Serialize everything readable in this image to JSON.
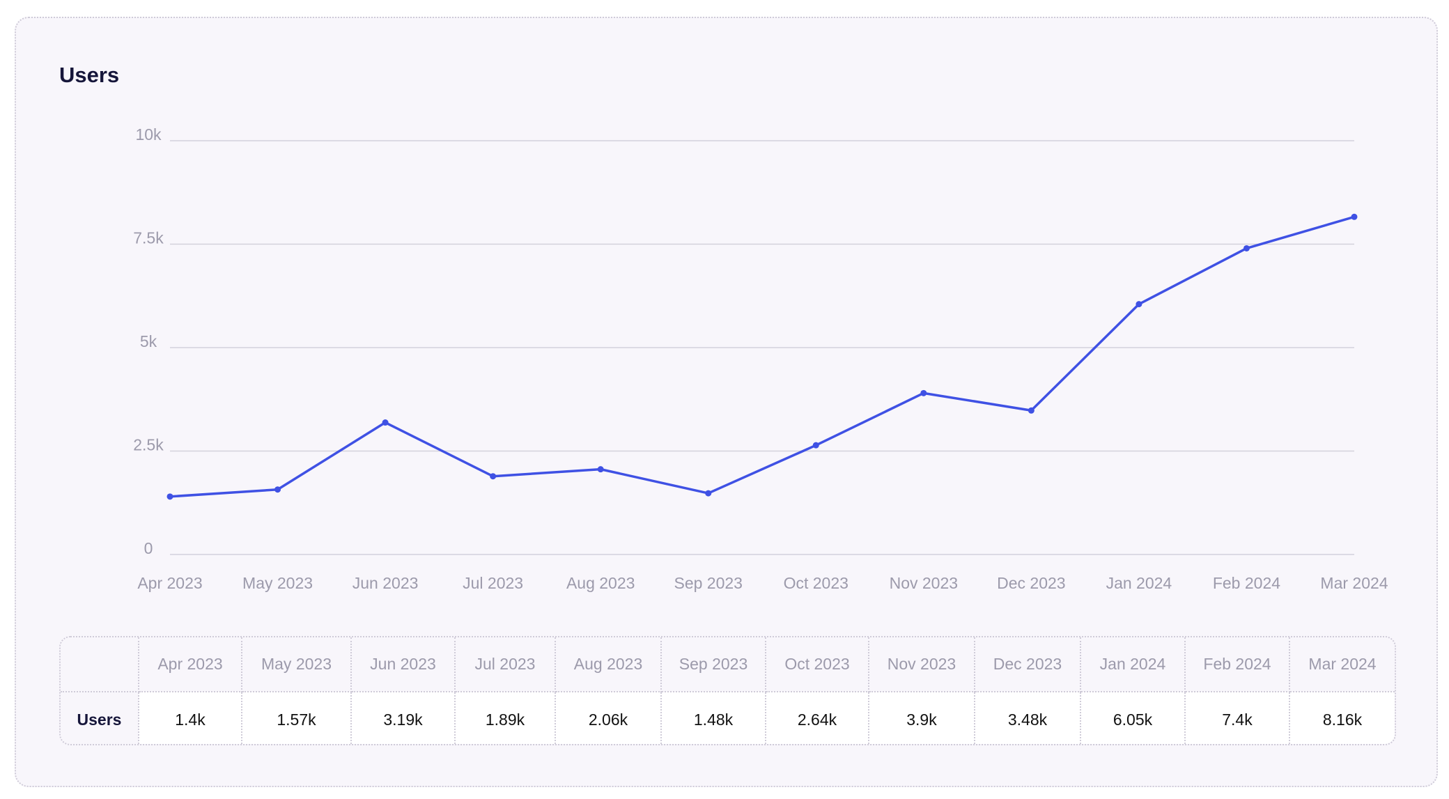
{
  "title": "Users",
  "colors": {
    "series": "#3f51e4",
    "grid": "#d3d1dc",
    "tick": "#9c9aab",
    "background": "#f8f6fb"
  },
  "chart_data": {
    "type": "line",
    "title": "Users",
    "xlabel": "",
    "ylabel": "",
    "categories": [
      "Apr 2023",
      "May 2023",
      "Jun 2023",
      "Jul 2023",
      "Aug 2023",
      "Sep 2023",
      "Oct 2023",
      "Nov 2023",
      "Dec 2023",
      "Jan 2024",
      "Feb 2024",
      "Mar 2024"
    ],
    "series": [
      {
        "name": "Users",
        "values": [
          1400,
          1570,
          3190,
          1890,
          2060,
          1480,
          2640,
          3900,
          3480,
          6050,
          7400,
          8160
        ]
      }
    ],
    "ylim": [
      0,
      10000
    ],
    "yticks": [
      0,
      2500,
      5000,
      7500,
      10000
    ],
    "ytick_labels": [
      "0",
      "2.5k",
      "5k",
      "7.5k",
      "10k"
    ],
    "grid": true,
    "legend": "none"
  },
  "table": {
    "row_label": "Users",
    "columns": [
      "Apr 2023",
      "May 2023",
      "Jun 2023",
      "Jul 2023",
      "Aug 2023",
      "Sep 2023",
      "Oct 2023",
      "Nov 2023",
      "Dec 2023",
      "Jan 2024",
      "Feb 2024",
      "Mar 2024"
    ],
    "values": [
      "1.4k",
      "1.57k",
      "3.19k",
      "1.89k",
      "2.06k",
      "1.48k",
      "2.64k",
      "3.9k",
      "3.48k",
      "6.05k",
      "7.4k",
      "8.16k"
    ]
  }
}
